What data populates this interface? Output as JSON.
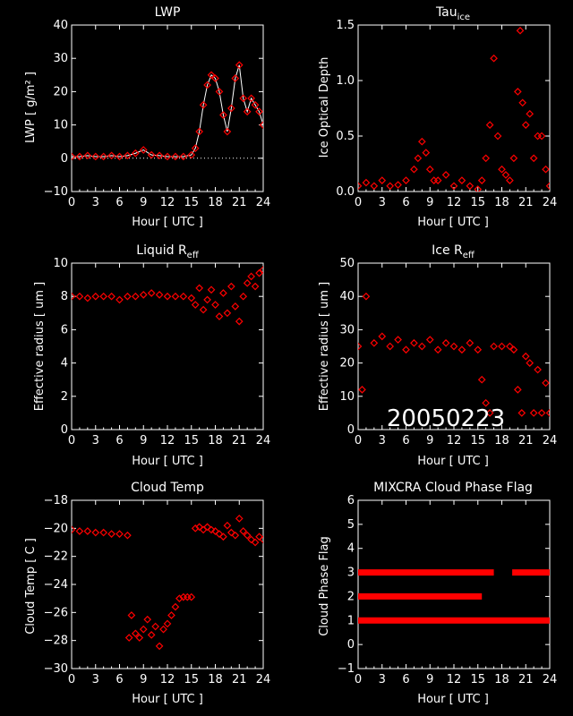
{
  "figure": {
    "stamp": "20050223",
    "background": "#000000",
    "foreground": "#ffffff",
    "marker_color": "#ff0000"
  },
  "chart_data": [
    {
      "id": "lwp",
      "type": "scatter",
      "title": "LWP",
      "xlabel": "Hour [ UTC ]",
      "ylabel": "LWP [ g/m² ]",
      "xlim": [
        0,
        24
      ],
      "ylim": [
        -10,
        40
      ],
      "xticks": [
        0,
        3,
        6,
        9,
        12,
        15,
        18,
        21,
        24
      ],
      "yticks": [
        -10,
        0,
        10,
        20,
        30,
        40
      ],
      "zero_line": true,
      "series": [
        {
          "kind": "noisy_line",
          "color": "#ffffff",
          "x": [
            0,
            1,
            2,
            3,
            4,
            5,
            6,
            7,
            8,
            9,
            10,
            11,
            12,
            13,
            14,
            15,
            15.5,
            16,
            16.5,
            17,
            17.5,
            18,
            18.5,
            19,
            19.5,
            20,
            20.5,
            21,
            21.5,
            22,
            22.5,
            23,
            23.5,
            24
          ],
          "y": [
            0.5,
            0.5,
            0.8,
            0.5,
            0.5,
            0.8,
            0.5,
            0.8,
            1.5,
            2.5,
            1.0,
            0.8,
            0.5,
            0.5,
            0.5,
            1.0,
            3,
            8,
            16,
            22,
            25,
            24,
            20,
            13,
            8,
            15,
            24,
            28,
            18,
            14,
            18,
            16,
            14,
            10
          ]
        },
        {
          "kind": "markers",
          "color": "#ff0000",
          "x": [
            0,
            1,
            2,
            3,
            4,
            5,
            6,
            7,
            8,
            9,
            10,
            11,
            12,
            13,
            14,
            15,
            15.5,
            16,
            16.5,
            17,
            17.5,
            18,
            18.5,
            19,
            19.5,
            20,
            20.5,
            21,
            21.5,
            22,
            22.5,
            23,
            23.5,
            24
          ],
          "y": [
            0.5,
            0.5,
            0.8,
            0.5,
            0.5,
            0.8,
            0.5,
            0.8,
            1.5,
            2.5,
            1.0,
            0.8,
            0.5,
            0.5,
            0.5,
            1.0,
            3,
            8,
            16,
            22,
            25,
            24,
            20,
            13,
            8,
            15,
            24,
            28,
            18,
            14,
            18,
            16,
            14,
            10
          ]
        }
      ]
    },
    {
      "id": "tau",
      "type": "scatter",
      "title": "Tau_ice",
      "title_main": "Tau",
      "title_sub": "ice",
      "xlabel": "Hour [ UTC ]",
      "ylabel": "Ice Optical Depth",
      "xlim": [
        0,
        24
      ],
      "ylim": [
        0,
        1.5
      ],
      "xticks": [
        0,
        3,
        6,
        9,
        12,
        15,
        18,
        21,
        24
      ],
      "yticks": [
        0.0,
        0.5,
        1.0,
        1.5
      ],
      "ytick_labels": [
        "0.0",
        "0.5",
        "1.0",
        "1.5"
      ],
      "series": [
        {
          "kind": "markers",
          "color": "#ff0000",
          "x": [
            0,
            1,
            2,
            3,
            4,
            5,
            6,
            7,
            7.5,
            8,
            8.5,
            9,
            9.5,
            10,
            11,
            12,
            13,
            14,
            15,
            15.5,
            16,
            16.5,
            17,
            17.5,
            18,
            18.5,
            19,
            19.5,
            20,
            20.3,
            20.6,
            21,
            21.5,
            22,
            22.5,
            23,
            23.5,
            24
          ],
          "y": [
            0.05,
            0.08,
            0.05,
            0.1,
            0.05,
            0.06,
            0.1,
            0.2,
            0.3,
            0.45,
            0.35,
            0.2,
            0.1,
            0.1,
            0.15,
            0.05,
            0.1,
            0.05,
            0.02,
            0.1,
            0.3,
            0.6,
            1.2,
            0.5,
            0.2,
            0.15,
            0.1,
            0.3,
            0.9,
            1.45,
            0.8,
            0.6,
            0.7,
            0.3,
            0.5,
            0.5,
            0.2,
            0.05
          ]
        }
      ]
    },
    {
      "id": "liq_reff",
      "type": "scatter",
      "title": "Liquid R_eff",
      "title_main": "Liquid R",
      "title_sub": "eff",
      "xlabel": "Hour [ UTC ]",
      "ylabel": "Effective radius [ um ]",
      "xlim": [
        0,
        24
      ],
      "ylim": [
        0,
        10
      ],
      "xticks": [
        0,
        3,
        6,
        9,
        12,
        15,
        18,
        21,
        24
      ],
      "yticks": [
        0,
        2,
        4,
        6,
        8,
        10
      ],
      "series": [
        {
          "kind": "markers",
          "color": "#ff0000",
          "x": [
            0,
            1,
            2,
            3,
            4,
            5,
            6,
            7,
            8,
            9,
            10,
            11,
            12,
            13,
            14,
            15,
            15.5,
            16,
            16.5,
            17,
            17.5,
            18,
            18.5,
            19,
            19.5,
            20,
            20.5,
            21,
            21.5,
            22,
            22.5,
            23,
            23.5,
            24
          ],
          "y": [
            8,
            8,
            7.9,
            8,
            8,
            8,
            7.8,
            8,
            8,
            8.1,
            8.2,
            8.1,
            8,
            8,
            8,
            7.9,
            7.5,
            8.5,
            7.2,
            7.8,
            8.4,
            7.5,
            6.8,
            8.2,
            7.0,
            8.6,
            7.4,
            6.5,
            8.0,
            8.8,
            9.2,
            8.6,
            9.4,
            9.6
          ]
        }
      ]
    },
    {
      "id": "ice_reff",
      "type": "scatter",
      "title": "Ice R_eff",
      "title_main": "Ice R",
      "title_sub": "eff",
      "xlabel": "Hour [ UTC ]",
      "ylabel": "Effective radius [ um ]",
      "xlim": [
        0,
        24
      ],
      "ylim": [
        0,
        50
      ],
      "xticks": [
        0,
        3,
        6,
        9,
        12,
        15,
        18,
        21,
        24
      ],
      "yticks": [
        0,
        10,
        20,
        30,
        40,
        50
      ],
      "series": [
        {
          "kind": "markers",
          "color": "#ff0000",
          "x": [
            0,
            0.5,
            1,
            2,
            3,
            4,
            5,
            6,
            7,
            8,
            9,
            10,
            11,
            12,
            13,
            14,
            15,
            15.5,
            16,
            16.5,
            17,
            18,
            19,
            19.5,
            20,
            20.5,
            21,
            21.5,
            22,
            22.5,
            23,
            23.5,
            24
          ],
          "y": [
            25,
            12,
            40,
            26,
            28,
            25,
            27,
            24,
            26,
            25,
            27,
            24,
            26,
            25,
            24,
            26,
            24,
            15,
            8,
            5,
            25,
            25,
            25,
            24,
            12,
            5,
            22,
            20,
            5,
            18,
            5,
            14,
            5
          ]
        }
      ]
    },
    {
      "id": "cloud_temp",
      "type": "scatter",
      "title": "Cloud Temp",
      "xlabel": "Hour [ UTC ]",
      "ylabel": "Cloud Temp [ C ]",
      "xlim": [
        0,
        24
      ],
      "ylim": [
        -30,
        -18
      ],
      "xticks": [
        0,
        3,
        6,
        9,
        12,
        15,
        18,
        21,
        24
      ],
      "yticks": [
        -30,
        -28,
        -26,
        -24,
        -22,
        -20,
        -18
      ],
      "series": [
        {
          "kind": "markers",
          "color": "#ff0000",
          "x": [
            0,
            1,
            2,
            3,
            4,
            5,
            6,
            7,
            7.2,
            7.5,
            8,
            8.5,
            9,
            9.5,
            10,
            10.5,
            11,
            11.5,
            12,
            12.5,
            13,
            13.5,
            14,
            14.5,
            15,
            15.5,
            16,
            16.5,
            17,
            17.5,
            18,
            18.5,
            19,
            19.5,
            20,
            20.5,
            21,
            21.5,
            22,
            22.5,
            23,
            23.5,
            24
          ],
          "y": [
            -20.1,
            -20.2,
            -20.2,
            -20.3,
            -20.3,
            -20.4,
            -20.4,
            -20.5,
            -27.8,
            -26.2,
            -27.5,
            -27.8,
            -27.2,
            -26.5,
            -27.6,
            -27.0,
            -28.4,
            -27.2,
            -26.8,
            -26.2,
            -25.6,
            -25.0,
            -24.9,
            -24.9,
            -24.9,
            -20.0,
            -19.9,
            -20.1,
            -19.9,
            -20.1,
            -20.2,
            -20.4,
            -20.6,
            -19.8,
            -20.3,
            -20.5,
            -19.3,
            -20.2,
            -20.5,
            -20.8,
            -21.0,
            -20.6,
            -20.8
          ]
        }
      ]
    },
    {
      "id": "phase_flag",
      "type": "scatter",
      "title": "MIXCRA Cloud Phase Flag",
      "xlabel": "Hour [ UTC ]",
      "ylabel": "Cloud Phase Flag",
      "xlim": [
        0,
        24
      ],
      "ylim": [
        -1,
        6
      ],
      "xticks": [
        0,
        3,
        6,
        9,
        12,
        15,
        18,
        21,
        24
      ],
      "yticks": [
        -1,
        0,
        1,
        2,
        3,
        4,
        5,
        6
      ],
      "series": [
        {
          "kind": "bands",
          "color": "#ff0000",
          "bands": [
            {
              "y": 3,
              "segments": [
                [
                  0,
                  17.0
                ],
                [
                  19.3,
                  24
                ]
              ]
            },
            {
              "y": 2,
              "segments": [
                [
                  0,
                  15.5
                ]
              ]
            },
            {
              "y": 1,
              "segments": [
                [
                  0,
                  24
                ]
              ]
            }
          ]
        }
      ]
    }
  ]
}
